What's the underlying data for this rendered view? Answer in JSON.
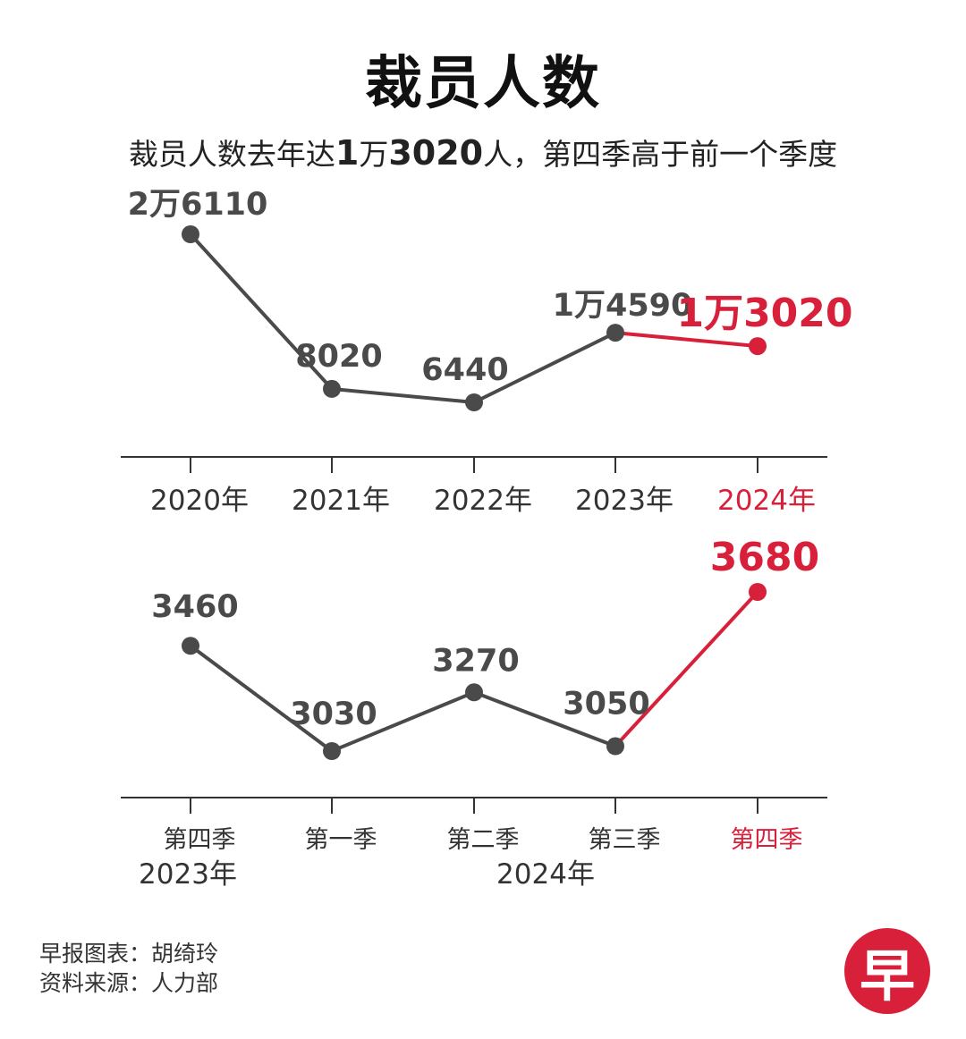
{
  "title": "裁员人数",
  "subtitle": {
    "prefix": "裁员人数去年达",
    "highlight_1": "1",
    "unit_wan": "万",
    "highlight_2": "3020",
    "suffix": "人，第四季高于前一个季度"
  },
  "colors": {
    "series": "#4a4a4a",
    "highlight": "#d8203a",
    "axis": "#333333"
  },
  "chart_data": [
    {
      "type": "line",
      "categories": [
        "2020年",
        "2021年",
        "2022年",
        "2023年",
        "2024年"
      ],
      "values": [
        26110,
        8020,
        6440,
        14590,
        13020
      ],
      "data_labels": [
        "2万6110",
        "8020",
        "6440",
        "1万4590",
        "1万3020"
      ],
      "highlight_index": 4,
      "ylim": [
        0,
        30000
      ]
    },
    {
      "type": "line",
      "categories": [
        "第四季",
        "第一季",
        "第二季",
        "第三季",
        "第四季"
      ],
      "group_labels": [
        "2023年",
        "2024年"
      ],
      "values": [
        3460,
        3030,
        3270,
        3050,
        3680
      ],
      "data_labels": [
        "3460",
        "3030",
        "3270",
        "3050",
        "3680"
      ],
      "highlight_index": 4,
      "ylim": [
        2500,
        3900
      ]
    }
  ],
  "credits": {
    "chart_by": "早报图表：胡绮玲",
    "source": "资料来源：人力部"
  },
  "logo_text": "早"
}
